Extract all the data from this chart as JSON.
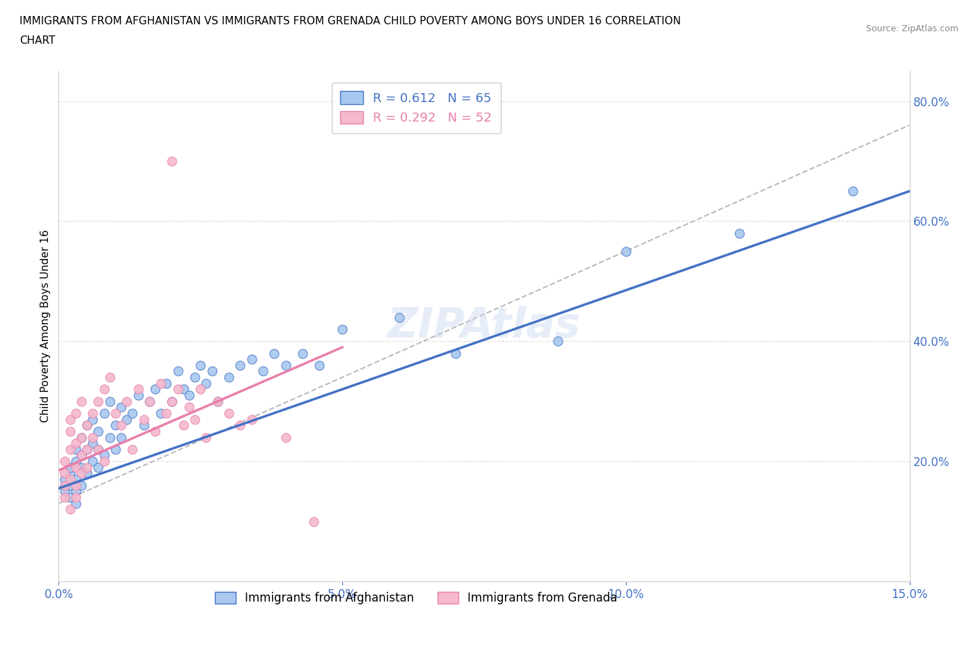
{
  "title_line1": "IMMIGRANTS FROM AFGHANISTAN VS IMMIGRANTS FROM GRENADA CHILD POVERTY AMONG BOYS UNDER 16 CORRELATION",
  "title_line2": "CHART",
  "source": "Source: ZipAtlas.com",
  "ylabel": "Child Poverty Among Boys Under 16",
  "xlim": [
    0.0,
    0.15
  ],
  "ylim": [
    0.0,
    0.85
  ],
  "y_ticks_right": [
    0.2,
    0.4,
    0.6,
    0.8
  ],
  "afghanistan_color": "#A8C8F0",
  "grenada_color": "#F5B8CC",
  "afghanistan_line_color": "#4472C4",
  "grenada_line_color": "#E87FAA",
  "dash_line_color": "#BBBBBB",
  "watermark": "ZIPAtlas",
  "R_afghanistan": 0.612,
  "N_afghanistan": 65,
  "R_grenada": 0.292,
  "N_grenada": 52,
  "afghanistan_scatter_x": [
    0.001,
    0.001,
    0.001,
    0.002,
    0.002,
    0.002,
    0.002,
    0.003,
    0.003,
    0.003,
    0.003,
    0.003,
    0.004,
    0.004,
    0.004,
    0.004,
    0.005,
    0.005,
    0.005,
    0.006,
    0.006,
    0.006,
    0.007,
    0.007,
    0.007,
    0.008,
    0.008,
    0.009,
    0.009,
    0.01,
    0.01,
    0.011,
    0.011,
    0.012,
    0.013,
    0.014,
    0.015,
    0.016,
    0.017,
    0.018,
    0.019,
    0.02,
    0.021,
    0.022,
    0.023,
    0.024,
    0.025,
    0.026,
    0.027,
    0.028,
    0.03,
    0.032,
    0.034,
    0.036,
    0.038,
    0.04,
    0.043,
    0.046,
    0.05,
    0.06,
    0.07,
    0.088,
    0.1,
    0.12,
    0.14
  ],
  "afghanistan_scatter_y": [
    0.16,
    0.17,
    0.15,
    0.18,
    0.16,
    0.19,
    0.14,
    0.17,
    0.2,
    0.15,
    0.22,
    0.13,
    0.19,
    0.21,
    0.16,
    0.24,
    0.18,
    0.22,
    0.26,
    0.2,
    0.23,
    0.27,
    0.19,
    0.25,
    0.22,
    0.21,
    0.28,
    0.24,
    0.3,
    0.22,
    0.26,
    0.24,
    0.29,
    0.27,
    0.28,
    0.31,
    0.26,
    0.3,
    0.32,
    0.28,
    0.33,
    0.3,
    0.35,
    0.32,
    0.31,
    0.34,
    0.36,
    0.33,
    0.35,
    0.3,
    0.34,
    0.36,
    0.37,
    0.35,
    0.38,
    0.36,
    0.38,
    0.36,
    0.42,
    0.44,
    0.38,
    0.4,
    0.55,
    0.58,
    0.65
  ],
  "grenada_scatter_x": [
    0.001,
    0.001,
    0.001,
    0.001,
    0.002,
    0.002,
    0.002,
    0.002,
    0.002,
    0.003,
    0.003,
    0.003,
    0.003,
    0.003,
    0.004,
    0.004,
    0.004,
    0.004,
    0.005,
    0.005,
    0.005,
    0.006,
    0.006,
    0.007,
    0.007,
    0.008,
    0.008,
    0.009,
    0.01,
    0.011,
    0.012,
    0.013,
    0.014,
    0.015,
    0.016,
    0.017,
    0.018,
    0.019,
    0.02,
    0.021,
    0.022,
    0.023,
    0.024,
    0.025,
    0.026,
    0.028,
    0.03,
    0.032,
    0.034,
    0.04,
    0.045,
    0.02
  ],
  "grenada_scatter_y": [
    0.16,
    0.18,
    0.2,
    0.14,
    0.22,
    0.17,
    0.25,
    0.12,
    0.27,
    0.19,
    0.23,
    0.16,
    0.28,
    0.14,
    0.24,
    0.21,
    0.18,
    0.3,
    0.22,
    0.26,
    0.19,
    0.28,
    0.24,
    0.3,
    0.22,
    0.32,
    0.2,
    0.34,
    0.28,
    0.26,
    0.3,
    0.22,
    0.32,
    0.27,
    0.3,
    0.25,
    0.33,
    0.28,
    0.3,
    0.32,
    0.26,
    0.29,
    0.27,
    0.32,
    0.24,
    0.3,
    0.28,
    0.26,
    0.27,
    0.24,
    0.1,
    0.7
  ],
  "afg_line_x": [
    0.0,
    0.15
  ],
  "afg_line_y": [
    0.155,
    0.65
  ],
  "gren_line_x": [
    0.0,
    0.05
  ],
  "gren_line_y": [
    0.185,
    0.39
  ],
  "dash_line_x": [
    0.0,
    0.15
  ],
  "dash_line_y": [
    0.13,
    0.76
  ]
}
